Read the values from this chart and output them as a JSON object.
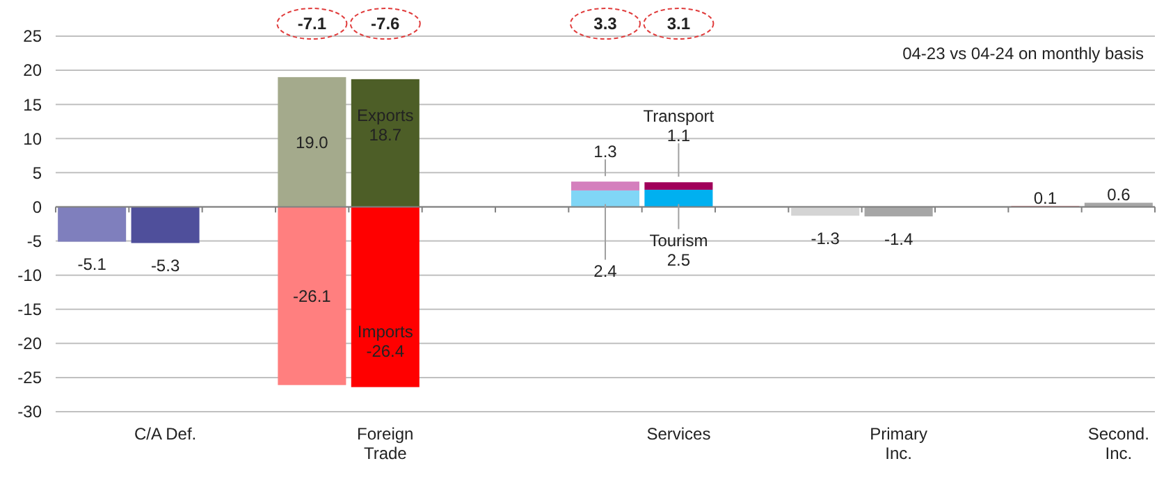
{
  "chart_data": {
    "type": "bar",
    "stacked": true,
    "grid": "y",
    "categories": [
      null,
      "C/A Def.",
      null,
      null,
      "Foreign Trade",
      null,
      null,
      null,
      "Services",
      null,
      null,
      "Primary Inc.",
      null,
      null,
      "Second. Inc."
    ],
    "series": [
      {
        "values": [
          -5.1,
          -5.3,
          null,
          19.0,
          18.7,
          null,
          null,
          2.4,
          2.5,
          null,
          -1.3,
          -1.4,
          null,
          0.1,
          0.6
        ],
        "colors": [
          "#7f7fbd",
          "#4f4f9b",
          null,
          "#a4aa8c",
          "#4d5e27",
          null,
          null,
          "#80d6f6",
          "#00b0f0",
          null,
          "#d4d4d4",
          "#a6a6a6",
          null,
          "#c0282d",
          "#a6a6a6"
        ],
        "value_labels": [
          "-5.1",
          "-5.3",
          null,
          "19.0",
          "Exports\n18.7",
          null,
          null,
          "2.4",
          "Tourism\n2.5",
          null,
          "-1.3",
          "-1.4",
          null,
          "0.1",
          "0.6"
        ]
      },
      {
        "values": [
          null,
          null,
          null,
          -26.1,
          -26.4,
          null,
          null,
          1.3,
          1.1,
          null,
          null,
          null,
          null,
          null,
          null
        ],
        "colors": [
          null,
          null,
          null,
          "#ff7f7f",
          "#ff0000",
          null,
          null,
          "#d47fbd",
          "#a0005a",
          null,
          null,
          null,
          null,
          null,
          null
        ],
        "value_labels": [
          null,
          null,
          null,
          "-26.1",
          "Imports\n-26.4",
          null,
          null,
          "1.3",
          "Transport\n1.1",
          null,
          null,
          null,
          null,
          null,
          null
        ]
      }
    ],
    "ylim": [
      -30,
      25
    ],
    "yticks": [
      -30,
      -25,
      -20,
      -15,
      -10,
      -5,
      0,
      5,
      10,
      15,
      20,
      25
    ],
    "annotations": [
      "04-23 vs 04-24 on monthly basis",
      "-7.1",
      "-7.6",
      "3.3",
      "3.1"
    ]
  }
}
